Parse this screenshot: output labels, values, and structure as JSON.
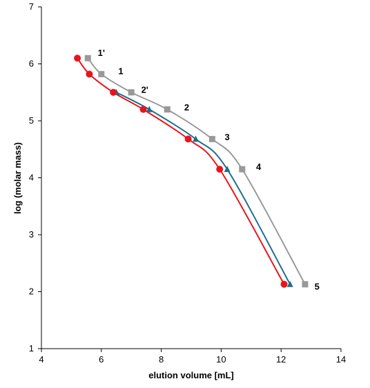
{
  "chart_data": {
    "type": "scatter",
    "title": "",
    "xlabel": "elution volume [mL]",
    "ylabel": "log (molar mass)",
    "xlim": [
      4,
      14
    ],
    "ylim": [
      1,
      7
    ],
    "xticks": [
      4,
      6,
      8,
      10,
      12,
      14
    ],
    "yticks": [
      1,
      2,
      3,
      4,
      5,
      6,
      7
    ],
    "grid": false,
    "legend": "none",
    "series": [
      {
        "marker": "square",
        "color": "#999999",
        "x": [
          5.55,
          6.0,
          7.0,
          8.2,
          9.7,
          10.7,
          12.8
        ],
        "y": [
          6.1,
          5.82,
          5.5,
          5.2,
          4.68,
          4.15,
          2.13
        ]
      },
      {
        "marker": "triangle",
        "color": "#1f6e8c",
        "x": [
          6.5,
          7.6,
          9.15,
          10.2,
          12.3
        ],
        "y": [
          5.5,
          5.2,
          4.68,
          4.15,
          2.13
        ]
      },
      {
        "marker": "circle",
        "color": "#e8141c",
        "x": [
          5.2,
          5.6,
          6.4,
          7.4,
          8.9,
          9.95,
          12.1
        ],
        "y": [
          6.1,
          5.82,
          5.5,
          5.2,
          4.68,
          4.15,
          2.13
        ]
      }
    ],
    "annotations": [
      {
        "text": "1'",
        "x": 6.0,
        "y": 6.2
      },
      {
        "text": "1",
        "x": 6.65,
        "y": 5.88
      },
      {
        "text": "2'",
        "x": 7.45,
        "y": 5.55
      },
      {
        "text": "2",
        "x": 8.85,
        "y": 5.24
      },
      {
        "text": "3",
        "x": 10.2,
        "y": 4.72
      },
      {
        "text": "4",
        "x": 11.25,
        "y": 4.2
      },
      {
        "text": "5",
        "x": 13.2,
        "y": 2.1
      }
    ]
  }
}
